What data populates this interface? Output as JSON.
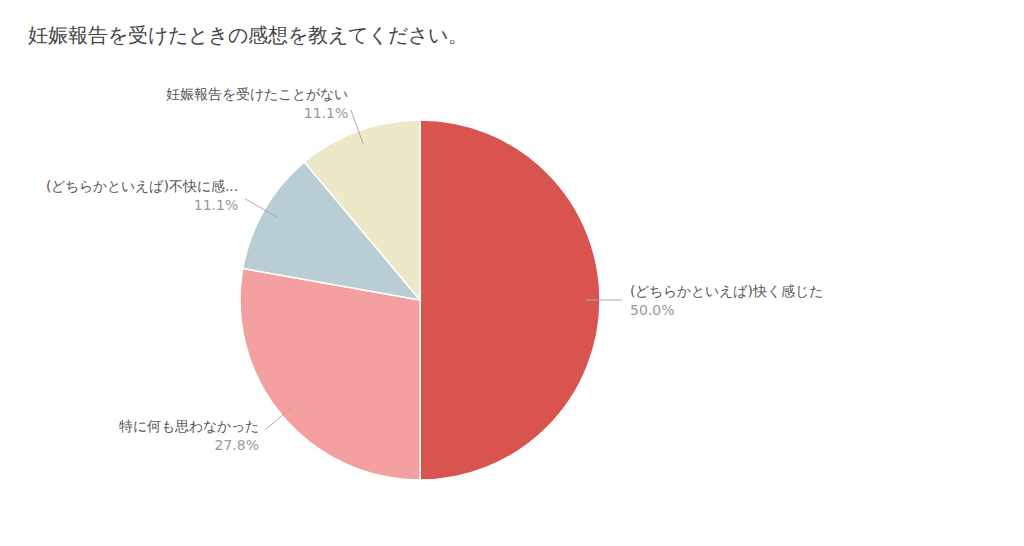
{
  "chart_data": {
    "type": "pie",
    "title": "妊娠報告を受けたときの感想を教えてください。",
    "categories": [
      "(どちらかといえば)快く感じた",
      "特に何も思わなかった",
      "(どちらかといえば)不快に感...",
      "妊娠報告を受けたことがない"
    ],
    "values": [
      50.0,
      27.8,
      11.1,
      11.1
    ],
    "value_labels": [
      "50.0%",
      "27.8%",
      "11.1%",
      "11.1%"
    ],
    "colors": [
      "#D9534F",
      "#F4A0A0",
      "#B8CDD4",
      "#EDE8C8"
    ],
    "data_labels": true
  }
}
